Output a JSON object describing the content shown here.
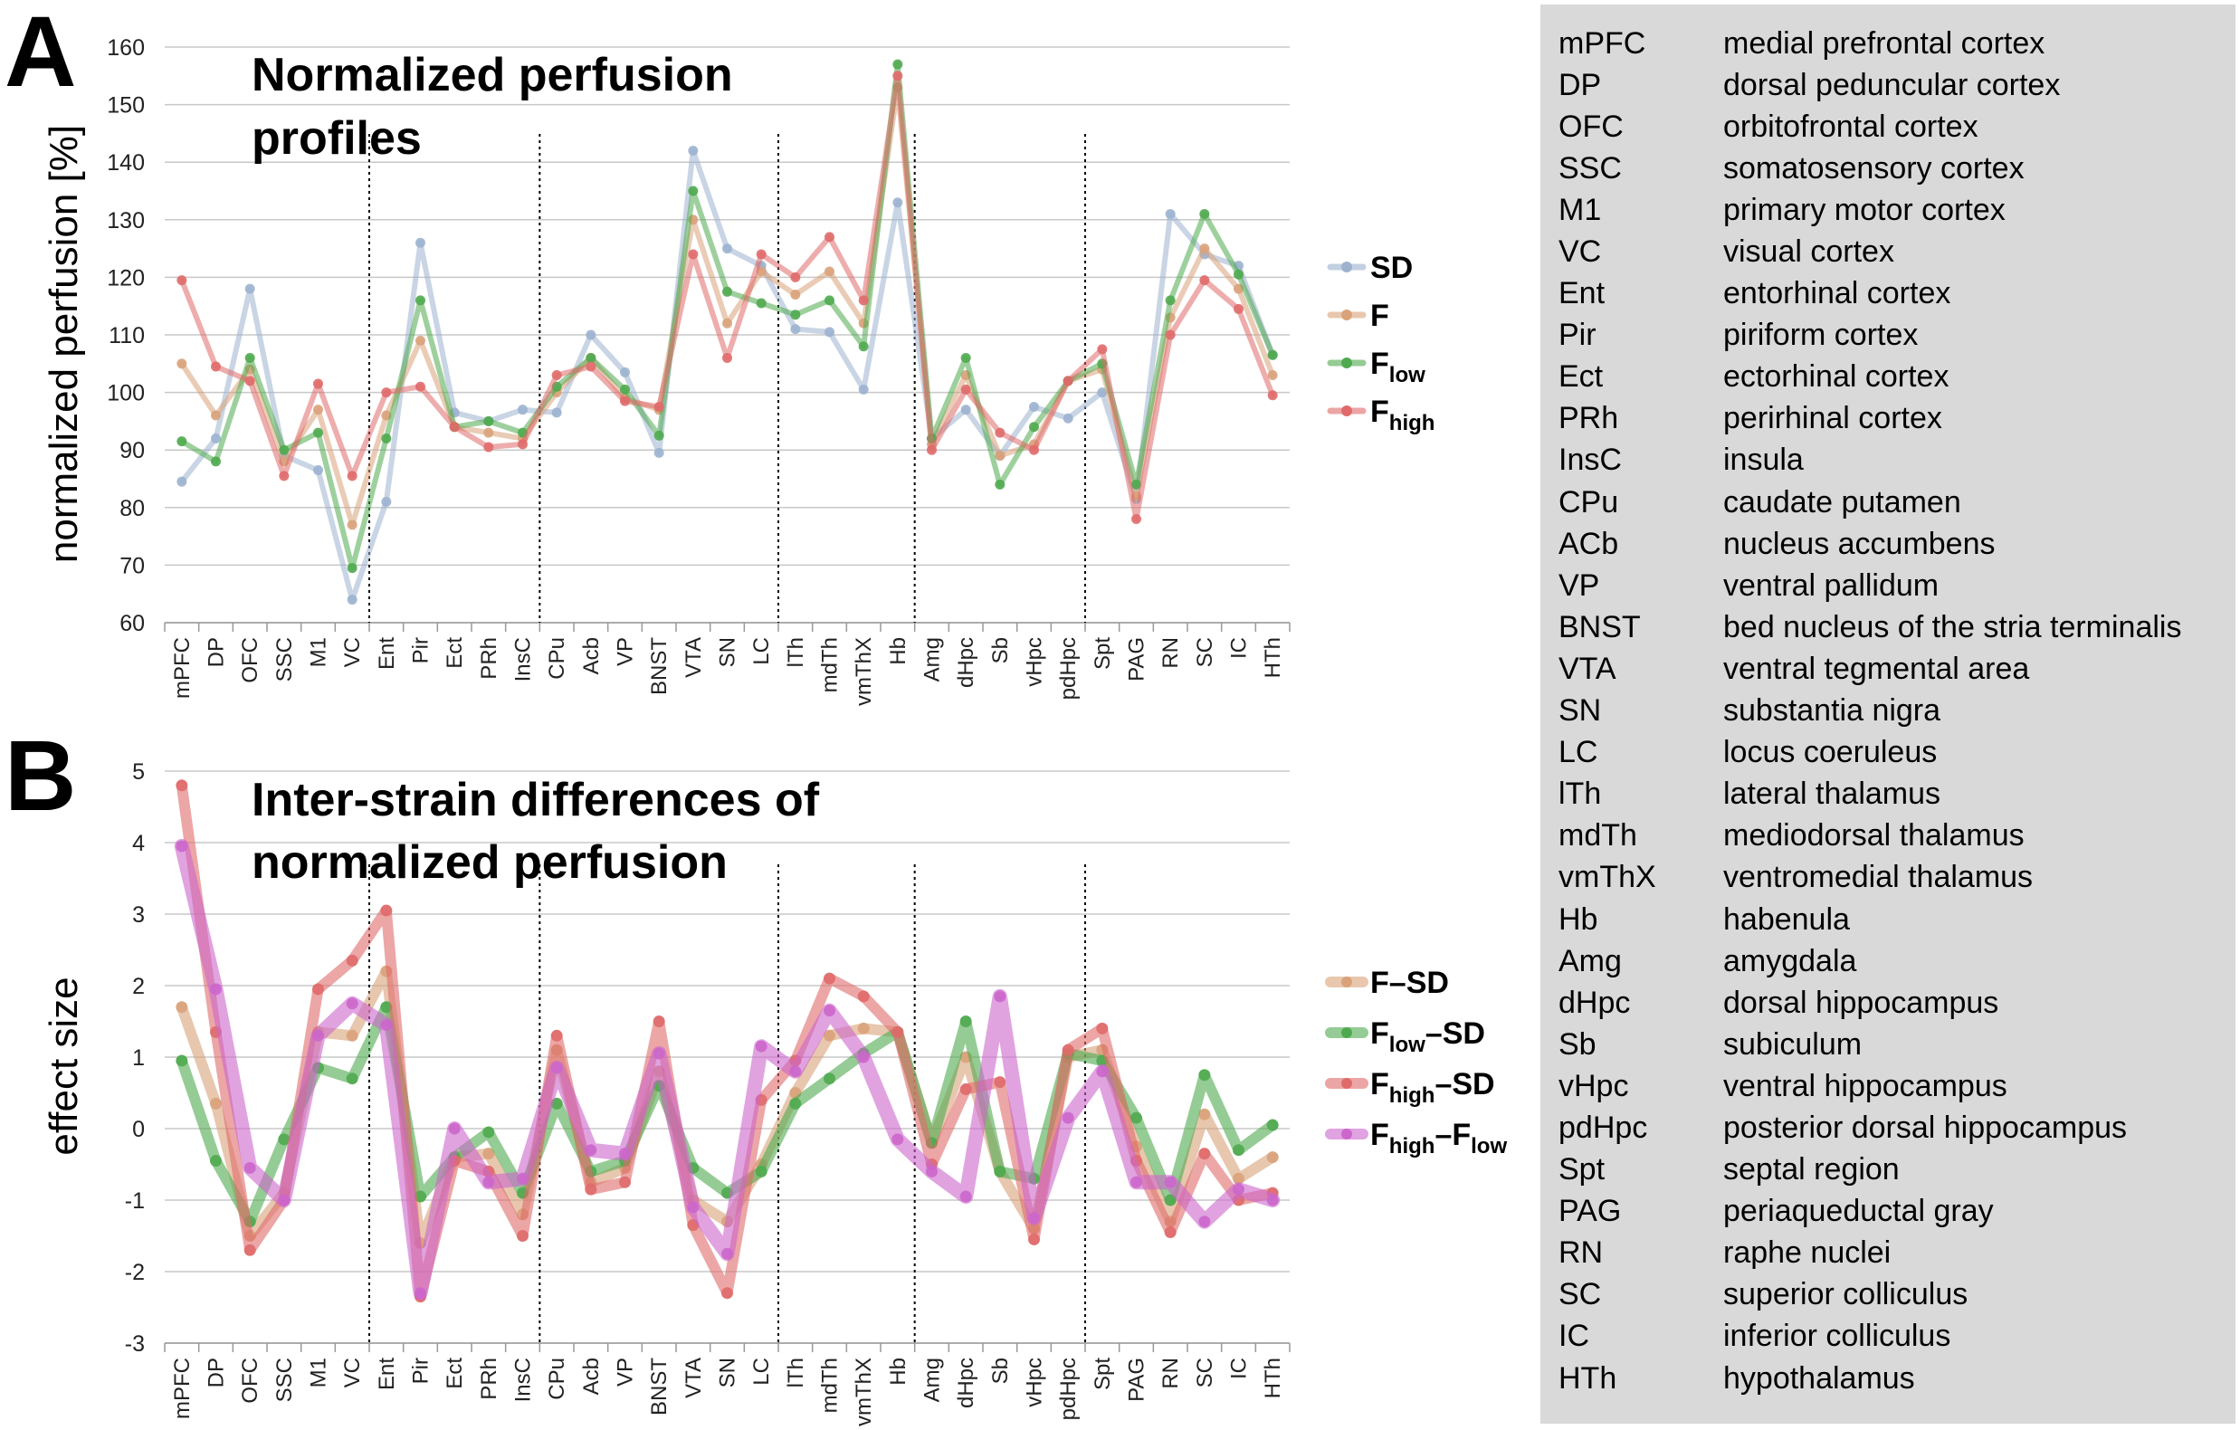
{
  "chart_data": [
    {
      "panel": "A",
      "type": "line",
      "title": "Normalized perfusion profiles",
      "title_lines": [
        "Normalized perfusion",
        "profiles"
      ],
      "ylabel": "normalized perfusion [%]",
      "xlabel": "",
      "ylim": [
        60,
        160
      ],
      "yticks": [
        60,
        70,
        80,
        90,
        100,
        110,
        120,
        130,
        140,
        150,
        160
      ],
      "grid": true,
      "legend_position": "right",
      "group_separators_after": [
        "VC",
        "InsC",
        "LC",
        "Hb",
        "pdHpc"
      ],
      "categories": [
        "mPFC",
        "DP",
        "OFC",
        "SSC",
        "M1",
        "VC",
        "Ent",
        "Pir",
        "Ect",
        "PRh",
        "InsC",
        "CPu",
        "Acb",
        "VP",
        "BNST",
        "VTA",
        "SN",
        "LC",
        "lTh",
        "mdTh",
        "vmThX",
        "Hb",
        "Amg",
        "dHpc",
        "Sb",
        "vHpc",
        "pdHpc",
        "Spt",
        "PAG",
        "RN",
        "SC",
        "IC",
        "HTh"
      ],
      "series": [
        {
          "name": "SD",
          "main": "SD",
          "sub": "",
          "color": "#9cb2cf",
          "values": [
            84.5,
            92,
            118,
            89,
            86.5,
            64,
            81,
            126,
            96.5,
            95,
            97,
            96.5,
            110,
            103.5,
            89.5,
            142,
            125,
            122,
            111,
            110.5,
            100.5,
            133,
            92,
            97,
            89,
            97.5,
            95.5,
            100,
            81.5,
            131,
            124,
            122,
            106.5
          ]
        },
        {
          "name": "F",
          "main": "F",
          "sub": "",
          "color": "#d9a27a",
          "values": [
            105,
            96,
            104,
            88,
            97,
            77,
            96,
            109,
            94,
            93,
            92,
            100,
            106,
            99,
            97,
            130,
            112,
            121,
            117,
            121,
            112,
            153,
            91,
            103,
            89,
            91,
            102,
            104,
            82,
            113,
            125,
            118,
            103
          ]
        },
        {
          "name": "Flow",
          "main": "F",
          "sub": "low",
          "color": "#4faa4f",
          "values": [
            91.5,
            88,
            106,
            90,
            93,
            69.5,
            92,
            116,
            94,
            95,
            93,
            101,
            106,
            100.5,
            92.5,
            135,
            117.5,
            115.5,
            113.5,
            116,
            108,
            157,
            92,
            106,
            84,
            94,
            102,
            105,
            84,
            116,
            131,
            120.5,
            106.5
          ]
        },
        {
          "name": "Fhigh",
          "main": "F",
          "sub": "high",
          "color": "#e06a6a",
          "values": [
            119.5,
            104.5,
            102,
            85.5,
            101.5,
            85.5,
            100,
            101,
            94,
            90.5,
            91,
            103,
            104.5,
            98.5,
            97.5,
            124,
            106,
            124,
            120,
            127,
            116,
            155,
            90,
            100.5,
            93,
            90,
            102,
            107.5,
            78,
            110,
            119.5,
            114.5,
            99.5
          ]
        }
      ]
    },
    {
      "panel": "B",
      "type": "line",
      "title": "Inter-strain differences of normalized perfusion",
      "title_lines": [
        "Inter-strain differences of",
        "normalized perfusion"
      ],
      "ylabel": "effect size",
      "xlabel": "",
      "ylim": [
        -3,
        5
      ],
      "yticks": [
        -3,
        -2,
        -1,
        0,
        1,
        2,
        3,
        4,
        5
      ],
      "grid": true,
      "legend_position": "right",
      "group_separators_after": [
        "VC",
        "InsC",
        "LC",
        "Hb",
        "pdHpc"
      ],
      "categories": [
        "mPFC",
        "DP",
        "OFC",
        "SSC",
        "M1",
        "VC",
        "Ent",
        "Pir",
        "Ect",
        "PRh",
        "InsC",
        "CPu",
        "Acb",
        "VP",
        "BNST",
        "VTA",
        "SN",
        "LC",
        "lTh",
        "mdTh",
        "vmThX",
        "Hb",
        "Amg",
        "dHpc",
        "Sb",
        "vHpc",
        "pdHpc",
        "Spt",
        "PAG",
        "RN",
        "SC",
        "IC",
        "HTh"
      ],
      "series": [
        {
          "name": "F–SD",
          "main": "F",
          "sub": "",
          "suffix": "–SD",
          "color": "#d9a27a",
          "values": [
            1.7,
            0.35,
            -1.5,
            -0.9,
            1.35,
            1.3,
            2.2,
            -1.6,
            -0.4,
            -0.35,
            -1.2,
            1.1,
            -0.75,
            -0.55,
            0.8,
            -1.0,
            -1.3,
            -0.5,
            0.5,
            1.3,
            1.4,
            1.35,
            -0.2,
            1.0,
            -0.6,
            -1.4,
            1.0,
            1.1,
            -0.25,
            -1.3,
            0.2,
            -0.7,
            -0.4
          ]
        },
        {
          "name": "Flow–SD",
          "main": "F",
          "sub": "low",
          "suffix": "–SD",
          "color": "#4faa4f",
          "values": [
            0.95,
            -0.45,
            -1.3,
            -0.15,
            0.85,
            0.7,
            1.7,
            -0.95,
            -0.4,
            -0.05,
            -0.9,
            0.35,
            -0.6,
            -0.45,
            0.6,
            -0.55,
            -0.9,
            -0.6,
            0.35,
            0.7,
            1.05,
            1.35,
            -0.2,
            1.5,
            -0.6,
            -0.7,
            1.05,
            0.95,
            0.15,
            -1.0,
            0.75,
            -0.3,
            0.05
          ]
        },
        {
          "name": "Fhigh–SD",
          "main": "F",
          "sub": "high",
          "suffix": "–SD",
          "color": "#e06a6a",
          "values": [
            4.8,
            1.35,
            -1.7,
            -1.0,
            1.95,
            2.35,
            3.05,
            -2.35,
            -0.45,
            -0.6,
            -1.5,
            1.3,
            -0.85,
            -0.75,
            1.5,
            -1.35,
            -2.3,
            0.4,
            0.95,
            2.1,
            1.85,
            1.35,
            -0.5,
            0.55,
            0.65,
            -1.55,
            1.1,
            1.4,
            -0.45,
            -1.45,
            -0.35,
            -1.0,
            -0.9
          ]
        },
        {
          "name": "Fhigh–Flow",
          "main": "F",
          "sub": "high",
          "suffix": "–F",
          "suffix_sub": "low",
          "color": "#cc66cc",
          "values": [
            3.95,
            1.95,
            -0.55,
            -1.0,
            1.3,
            1.75,
            1.45,
            -2.3,
            0.0,
            -0.75,
            -0.7,
            0.85,
            -0.3,
            -0.35,
            1.05,
            -1.1,
            -1.75,
            1.15,
            0.8,
            1.65,
            1.0,
            -0.15,
            -0.6,
            -0.95,
            1.85,
            -1.25,
            0.15,
            0.8,
            -0.75,
            -0.75,
            -1.3,
            -0.85,
            -1.0
          ]
        }
      ]
    }
  ],
  "abbreviations": [
    {
      "abbr": "mPFC",
      "name": "medial prefrontal cortex"
    },
    {
      "abbr": "DP",
      "name": "dorsal peduncular cortex"
    },
    {
      "abbr": "OFC",
      "name": "orbitofrontal cortex"
    },
    {
      "abbr": "SSC",
      "name": "somatosensory cortex"
    },
    {
      "abbr": "M1",
      "name": "primary motor cortex"
    },
    {
      "abbr": "VC",
      "name": "visual cortex"
    },
    {
      "abbr": "Ent",
      "name": "entorhinal cortex"
    },
    {
      "abbr": "Pir",
      "name": "piriform cortex"
    },
    {
      "abbr": "Ect",
      "name": "ectorhinal cortex"
    },
    {
      "abbr": "PRh",
      "name": "perirhinal cortex"
    },
    {
      "abbr": "InsC",
      "name": "insula"
    },
    {
      "abbr": "CPu",
      "name": "caudate putamen"
    },
    {
      "abbr": "ACb",
      "name": "nucleus accumbens"
    },
    {
      "abbr": "VP",
      "name": "ventral pallidum"
    },
    {
      "abbr": "BNST",
      "name": "bed nucleus of the stria terminalis"
    },
    {
      "abbr": "VTA",
      "name": "ventral tegmental area"
    },
    {
      "abbr": "SN",
      "name": "substantia nigra"
    },
    {
      "abbr": "LC",
      "name": "locus coeruleus"
    },
    {
      "abbr": "lTh",
      "name": "lateral thalamus"
    },
    {
      "abbr": "mdTh",
      "name": "mediodorsal thalamus"
    },
    {
      "abbr": "vmThX",
      "name": "ventromedial thalamus"
    },
    {
      "abbr": "Hb",
      "name": "habenula"
    },
    {
      "abbr": "Amg",
      "name": "amygdala"
    },
    {
      "abbr": "dHpc",
      "name": "dorsal hippocampus"
    },
    {
      "abbr": "Sb",
      "name": "subiculum"
    },
    {
      "abbr": "vHpc",
      "name": "ventral hippocampus"
    },
    {
      "abbr": "pdHpc",
      "name": "posterior dorsal hippocampus"
    },
    {
      "abbr": "Spt",
      "name": "septal region"
    },
    {
      "abbr": "PAG",
      "name": "periaqueductal gray"
    },
    {
      "abbr": "RN",
      "name": "raphe nuclei"
    },
    {
      "abbr": "SC",
      "name": "superior colliculus"
    },
    {
      "abbr": "IC",
      "name": "inferior colliculus"
    },
    {
      "abbr": "HTh",
      "name": "hypothalamus"
    }
  ]
}
